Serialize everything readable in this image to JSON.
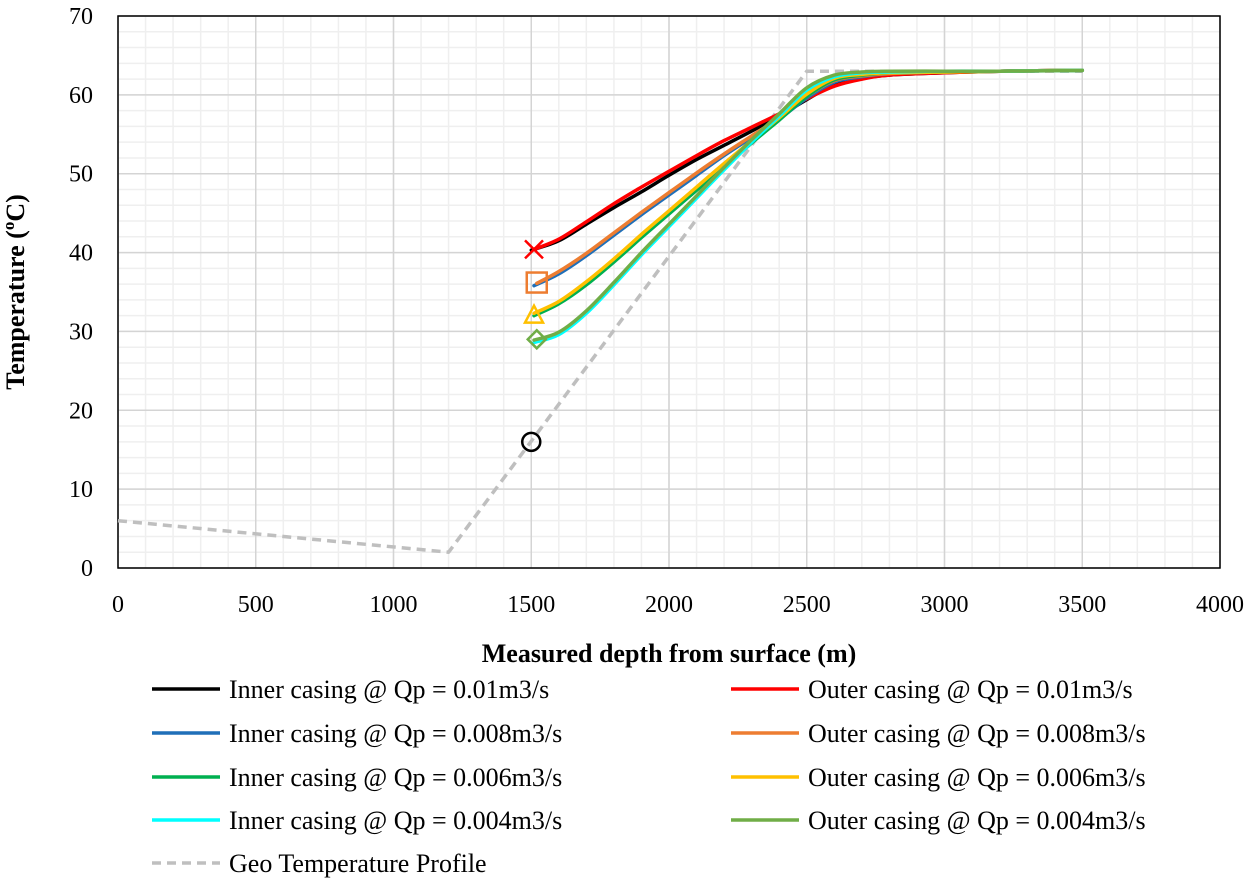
{
  "chart_data": {
    "type": "line",
    "xlabel": "Measured depth from surface (m)",
    "ylabel_main": "Temperature (",
    "ylabel_sup": "o",
    "ylabel_end": "C)",
    "xlim": [
      0,
      4000
    ],
    "ylim": [
      0,
      70
    ],
    "x_ticks": [
      0,
      500,
      1000,
      1500,
      2000,
      2500,
      3000,
      3500,
      4000
    ],
    "y_ticks": [
      0,
      10,
      20,
      30,
      40,
      50,
      60,
      70
    ],
    "x_minor_step": 100,
    "y_minor_step": 2,
    "grid": true,
    "legend_position": "bottom",
    "series": [
      {
        "name": "Inner casing @ Qp = 0.01m3/s",
        "color": "#000000",
        "dash": false,
        "x": [
          1500,
          1600,
          1700,
          1800,
          1900,
          2000,
          2100,
          2200,
          2300,
          2400,
          2500,
          2600,
          2700,
          2800,
          3000,
          3200,
          3500
        ],
        "y": [
          40.3,
          41.5,
          43.6,
          45.7,
          47.7,
          49.8,
          51.8,
          53.6,
          55.4,
          57.3,
          59.4,
          61.3,
          62.1,
          62.5,
          62.8,
          63.0,
          63.1
        ]
      },
      {
        "name": "Outer casing @ Qp = 0.01m3/s",
        "color": "#ff0000",
        "dash": false,
        "x": [
          1510,
          1600,
          1700,
          1800,
          1900,
          2000,
          2100,
          2200,
          2300,
          2400,
          2500,
          2600,
          2700,
          2800,
          3000,
          3200,
          3500
        ],
        "y": [
          40.4,
          41.7,
          43.9,
          46.2,
          48.3,
          50.3,
          52.3,
          54.2,
          55.9,
          57.6,
          59.5,
          61.1,
          62.0,
          62.5,
          62.8,
          63.0,
          63.1
        ]
      },
      {
        "name": "Inner casing @ Qp = 0.008m3/s",
        "color": "#1f6fb8",
        "dash": false,
        "x": [
          1510,
          1600,
          1700,
          1800,
          1900,
          2000,
          2100,
          2200,
          2300,
          2400,
          2500,
          2600,
          2700,
          2800,
          3000,
          3200,
          3500
        ],
        "y": [
          35.8,
          37.3,
          39.6,
          42.2,
          44.8,
          47.3,
          49.8,
          52.3,
          54.6,
          56.9,
          59.6,
          61.6,
          62.3,
          62.7,
          62.9,
          63.0,
          63.1
        ]
      },
      {
        "name": "Outer casing @ Qp = 0.008m3/s",
        "color": "#ed7d31",
        "dash": false,
        "x": [
          1520,
          1600,
          1700,
          1800,
          1900,
          2000,
          2100,
          2200,
          2300,
          2400,
          2500,
          2600,
          2700,
          2800,
          3000,
          3200,
          3500
        ],
        "y": [
          36.1,
          37.6,
          39.9,
          42.5,
          45.1,
          47.6,
          50.1,
          52.5,
          54.8,
          57.1,
          59.8,
          61.8,
          62.4,
          62.7,
          62.9,
          63.0,
          63.1
        ]
      },
      {
        "name": "Inner casing @ Qp = 0.006m3/s",
        "color": "#00b050",
        "dash": false,
        "x": [
          1510,
          1600,
          1700,
          1800,
          1900,
          2000,
          2100,
          2200,
          2300,
          2400,
          2500,
          2600,
          2700,
          2800,
          3000,
          3200,
          3500
        ],
        "y": [
          32.0,
          33.5,
          35.9,
          38.8,
          41.9,
          44.9,
          47.9,
          50.9,
          53.9,
          56.8,
          59.8,
          61.9,
          62.5,
          62.8,
          62.9,
          63.0,
          63.1
        ]
      },
      {
        "name": "Outer casing @ Qp = 0.006m3/s",
        "color": "#ffc000",
        "dash": false,
        "x": [
          1510,
          1600,
          1700,
          1800,
          1900,
          2000,
          2100,
          2200,
          2300,
          2400,
          2500,
          2600,
          2700,
          2800,
          3000,
          3200,
          3500
        ],
        "y": [
          32.3,
          33.8,
          36.3,
          39.2,
          42.3,
          45.3,
          48.3,
          51.3,
          54.2,
          57.1,
          60.1,
          62.1,
          62.6,
          62.8,
          62.9,
          63.0,
          63.1
        ]
      },
      {
        "name": "Inner casing @ Qp = 0.004m3/s",
        "color": "#00ffff",
        "dash": false,
        "x": [
          1510,
          1600,
          1700,
          1800,
          1900,
          2000,
          2100,
          2200,
          2300,
          2400,
          2500,
          2600,
          2700,
          2800,
          3000,
          3200,
          3500
        ],
        "y": [
          28.6,
          29.6,
          32.3,
          35.9,
          39.7,
          43.3,
          46.9,
          50.5,
          54.0,
          57.3,
          60.6,
          62.3,
          62.8,
          62.9,
          63.0,
          63.0,
          63.1
        ]
      },
      {
        "name": "Outer casing @ Qp = 0.004m3/s",
        "color": "#70ad47",
        "dash": false,
        "x": [
          1510,
          1600,
          1700,
          1800,
          1900,
          2000,
          2100,
          2200,
          2300,
          2400,
          2500,
          2600,
          2700,
          2800,
          3000,
          3200,
          3500
        ],
        "y": [
          28.9,
          29.9,
          32.6,
          36.2,
          40.0,
          43.6,
          47.2,
          50.8,
          54.3,
          57.6,
          60.9,
          62.5,
          62.9,
          63.0,
          63.0,
          63.0,
          63.1
        ]
      },
      {
        "name": "Geo Temperature Profile",
        "color": "#bfbfbf",
        "dash": true,
        "x": [
          0,
          1200,
          2500,
          3500
        ],
        "y": [
          6,
          2,
          63,
          63
        ]
      }
    ],
    "markers": [
      {
        "shape": "x",
        "x": 1510,
        "y": 40.4,
        "color": "#ff0000"
      },
      {
        "shape": "square",
        "x": 1520,
        "y": 36.2,
        "color": "#ed7d31"
      },
      {
        "shape": "triangle",
        "x": 1510,
        "y": 32.0,
        "color": "#ffc000"
      },
      {
        "shape": "diamond",
        "x": 1520,
        "y": 29.0,
        "color": "#70ad47"
      },
      {
        "shape": "circle",
        "x": 1500,
        "y": 16.0,
        "color": "#000000"
      }
    ]
  }
}
